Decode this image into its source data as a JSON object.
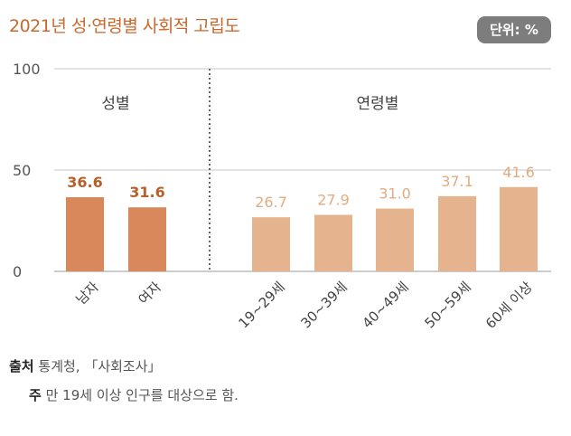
{
  "title": "2021년 성·연령별 사회적 고립도",
  "unit_label": "단위: %",
  "colors": {
    "gender_bar": "#d8885a",
    "gender_value": "#b85f2a",
    "age_bar": "#e5b48f",
    "age_value": "#e1ac82",
    "title": "#c8692e"
  },
  "chart_data": {
    "type": "bar",
    "ylim": [
      0,
      100
    ],
    "y_ticks": [
      "0",
      "50",
      "100"
    ],
    "grid": true,
    "groups": [
      {
        "name": "성별",
        "categories": [
          "남자",
          "여자"
        ],
        "values": [
          36.6,
          31.6
        ],
        "labels": [
          "36.6",
          "31.6"
        ]
      },
      {
        "name": "연령별",
        "categories": [
          "19~29세",
          "30~39세",
          "40~49세",
          "50~59세",
          "60세 이상"
        ],
        "values": [
          26.7,
          27.9,
          31.0,
          37.1,
          41.6
        ],
        "labels": [
          "26.7",
          "27.9",
          "31.0",
          "37.1",
          "41.6"
        ]
      }
    ]
  },
  "source": {
    "label": "출처",
    "text": "통계청, 「사회조사」"
  },
  "note": {
    "label": "주",
    "text": "만 19세 이상 인구를 대상으로 함."
  }
}
